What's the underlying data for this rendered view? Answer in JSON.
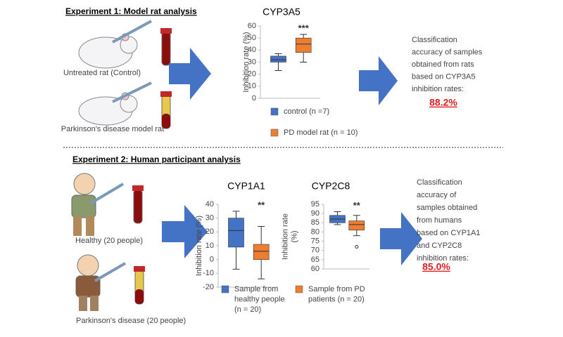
{
  "experiment1": {
    "heading": "Experiment  1: Model rat analysis",
    "control_caption": "Untreated rat (Control)",
    "pd_caption": "Parkinson's disease model rat",
    "result_lines": [
      "Classification",
      "accuracy of samples",
      "obtained from rats",
      "based on CYP3A5",
      "inhibition rates:"
    ],
    "accuracy": "88.2%"
  },
  "experiment2": {
    "heading": "Experiment  2: Human participant analysis",
    "healthy_caption": "Healthy (20 people)",
    "pd_caption": "Parkinson's disease (20 people)",
    "result_lines": [
      "Classification",
      "accuracy of",
      "samples obtained",
      "from humans",
      "based on CYP1A1",
      "and CYP2C8",
      "inhibition rates:"
    ],
    "accuracy": "85.0%"
  },
  "chart_data": [
    {
      "type": "box",
      "title": "CYP3A5",
      "y_label": [
        "Inhibition rate (%)"
      ],
      "ylim": [
        0,
        60
      ],
      "yticks": [
        0,
        10,
        20,
        30,
        40,
        50,
        60
      ],
      "annotation": "***",
      "series": [
        {
          "name": [
            "control (n =7)"
          ],
          "color": "#4472c4",
          "min": 23,
          "q1": 30,
          "median": 32,
          "q3": 35,
          "max": 37
        },
        {
          "name": [
            "PD model rat (n = 10)"
          ],
          "color": "#ed7d31",
          "min": 30,
          "q1": 38,
          "median": 45,
          "q3": 50,
          "max": 53
        }
      ]
    },
    {
      "type": "box",
      "title": "CYP1A1",
      "y_label": [
        "Inhibition rate (%)"
      ],
      "ylim": [
        -20,
        40
      ],
      "yticks": [
        -20,
        -10,
        0,
        10,
        20,
        30,
        40
      ],
      "annotation": "**",
      "series": [
        {
          "name": [
            "Sample from",
            "healthy people",
            "(n = 20)"
          ],
          "color": "#4472c4",
          "min": -7,
          "q1": 9,
          "median": 21,
          "q3": 30,
          "max": 35
        },
        {
          "name": [
            "Sample from PD",
            "patients (n = 20)"
          ],
          "color": "#ed7d31",
          "min": -14,
          "q1": 0,
          "median": 6,
          "q3": 11,
          "max": 24
        }
      ]
    },
    {
      "type": "box",
      "title": "CYP2C8",
      "y_label": [
        "Inhibition rate",
        "(%)"
      ],
      "ylim": [
        60,
        95
      ],
      "yticks": [
        60,
        65,
        70,
        75,
        80,
        85,
        90,
        95
      ],
      "annotation": "**",
      "series": [
        {
          "color": "#4472c4",
          "min": 84,
          "q1": 85,
          "median": 87,
          "q3": 89,
          "max": 91
        },
        {
          "color": "#ed7d31",
          "min": 78,
          "q1": 81,
          "median": 84,
          "q3": 86,
          "max": 89,
          "outliers": [
            72
          ]
        }
      ]
    }
  ]
}
